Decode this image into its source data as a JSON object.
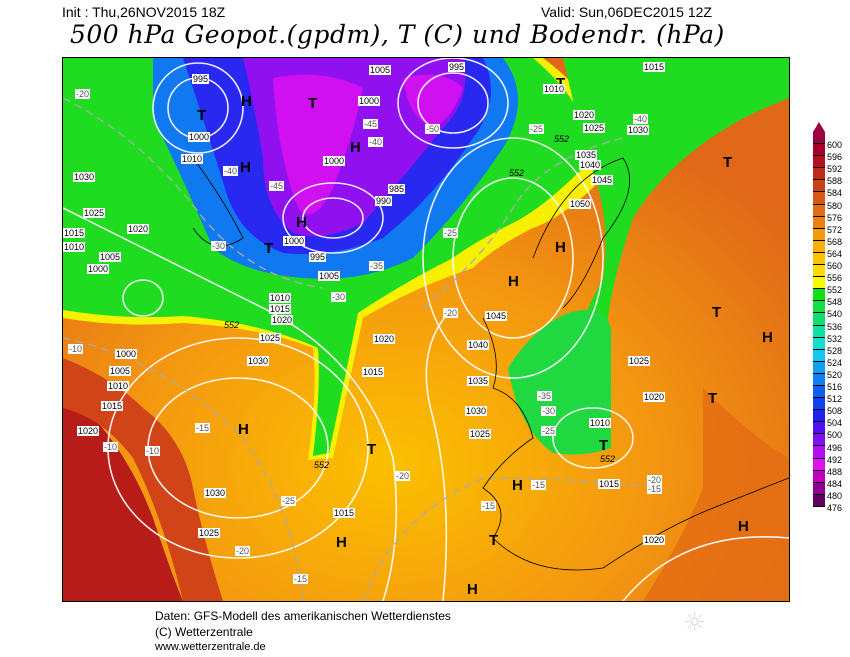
{
  "header": {
    "init": "Init : Thu,26NOV2015 18Z",
    "valid": "Valid: Sun,06DEC2015 12Z",
    "title": "500 hPa Geopot.(gpdm), T (C) und Bodendr. (hPa)"
  },
  "colorbar": {
    "labels": [
      "600",
      "596",
      "592",
      "588",
      "584",
      "580",
      "576",
      "572",
      "568",
      "564",
      "560",
      "556",
      "552",
      "548",
      "540",
      "536",
      "532",
      "528",
      "524",
      "520",
      "516",
      "512",
      "508",
      "504",
      "500",
      "496",
      "492",
      "488",
      "484",
      "480",
      "476"
    ],
    "colors": [
      "#9e0040",
      "#a8002c",
      "#b4101c",
      "#c02818",
      "#cc4018",
      "#d85818",
      "#e46c14",
      "#ec8010",
      "#f49810",
      "#f8ae08",
      "#fcc400",
      "#fcdc00",
      "#f8f800",
      "#10e010",
      "#10e040",
      "#10e070",
      "#10e0a0",
      "#10e0d0",
      "#10c8f0",
      "#10a0f0",
      "#1080f0",
      "#1060f0",
      "#1040f0",
      "#2020f0",
      "#5010f0",
      "#8010f0",
      "#b010f0",
      "#e010f0",
      "#c000c0",
      "#900090",
      "#600060"
    ]
  },
  "map": {
    "pressure_centers": [
      "H",
      "T",
      "T",
      "H",
      "H",
      "T",
      "H",
      "H",
      "H",
      "T",
      "T",
      "H",
      "T",
      "H",
      "T",
      "H",
      "T",
      "H",
      "T",
      "H",
      "H",
      "T"
    ],
    "isobar_labels": [
      "995",
      "1005",
      "1000",
      "1010",
      "1000",
      "1000",
      "1000",
      "995",
      "1005",
      "985",
      "990",
      "1030",
      "1025",
      "1020",
      "1015",
      "1010",
      "1005",
      "1000",
      "1010",
      "1015",
      "1020",
      "1025",
      "1030",
      "1000",
      "1005",
      "1010",
      "1015",
      "1020",
      "1030",
      "1025",
      "1015",
      "1015",
      "1020",
      "1045",
      "1040",
      "1035",
      "1030",
      "1025",
      "1015",
      "1010",
      "1020",
      "1025",
      "1020",
      "1035",
      "1040",
      "1045",
      "1050",
      "1025",
      "1020",
      "1030",
      "1015",
      "1010",
      "995"
    ],
    "temperature_labels": [
      "-20",
      "-40",
      "-45",
      "-30",
      "-35",
      "-30",
      "-25",
      "-20",
      "-35",
      "-30",
      "-25",
      "-15",
      "-10",
      "-10",
      "-10",
      "-15",
      "-20",
      "-25",
      "-20",
      "-15",
      "-15",
      "-20",
      "-15",
      "-25",
      "-40",
      "-50",
      "-40",
      "-45"
    ],
    "contour_552_labels": [
      "552",
      "552",
      "552",
      "552",
      "552"
    ]
  },
  "footer": {
    "line1": "Daten: GFS-Modell des amerikanischen Wetterdienstes",
    "line2": "(C) Wetterzentrale",
    "line3": "www.wetterzentrale.de"
  },
  "logo": {
    "icon": "sun-icon"
  }
}
